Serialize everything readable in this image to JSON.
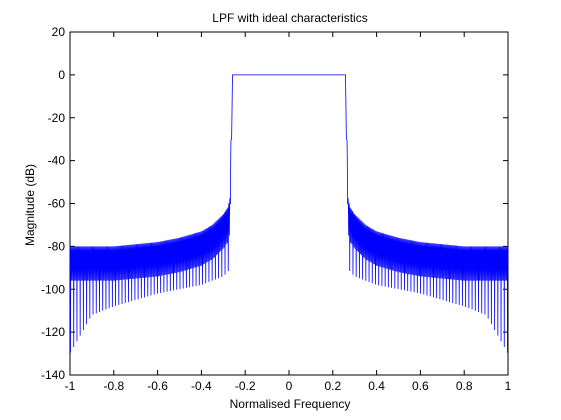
{
  "chart_data": {
    "type": "line",
    "title": "LPF with ideal characteristics",
    "xlabel": "Normalised Frequency",
    "ylabel": "Magnitude (dB)",
    "xlim": [
      -1,
      1
    ],
    "ylim": [
      -140,
      20
    ],
    "xticks": [
      -1,
      -0.8,
      -0.6,
      -0.4,
      -0.2,
      0,
      0.2,
      0.4,
      0.6,
      0.8,
      1
    ],
    "xtick_labels": [
      "-1",
      "-0.8",
      "-0.6",
      "-0.4",
      "-0.2",
      "0",
      "0.2",
      "0.4",
      "0.6",
      "0.8",
      "1"
    ],
    "yticks": [
      -140,
      -120,
      -100,
      -80,
      -60,
      -40,
      -20,
      0,
      20
    ],
    "ytick_labels": [
      "-140",
      "-120",
      "-100",
      "-80",
      "-60",
      "-40",
      "-20",
      "0",
      "20"
    ],
    "grid": false,
    "line_color": "#0000ff",
    "series": [
      {
        "x": [
          -1.0,
          -0.9,
          -0.8,
          -0.7,
          -0.6,
          -0.5,
          -0.4,
          -0.35,
          -0.3,
          -0.28,
          -0.27,
          -0.265,
          -0.26,
          0.0,
          0.26,
          0.265,
          0.27,
          0.28,
          0.3,
          0.35,
          0.4,
          0.5,
          0.6,
          0.7,
          0.8,
          0.9,
          1.0
        ],
        "upper_envelope": [
          -80,
          -80,
          -80,
          -79,
          -78,
          -76,
          -73,
          -70,
          -65,
          -62,
          -58,
          -30,
          0,
          0,
          0,
          -30,
          -58,
          -62,
          -65,
          -70,
          -73,
          -76,
          -78,
          -79,
          -80,
          -80,
          -80
        ],
        "lower_envelope": [
          -130,
          -112,
          -108,
          -105,
          -102,
          -100,
          -98,
          -96,
          -94,
          -92,
          -90,
          -40,
          0,
          0,
          0,
          -40,
          -90,
          -92,
          -94,
          -96,
          -98,
          -100,
          -102,
          -105,
          -108,
          -112,
          -130
        ]
      }
    ]
  }
}
